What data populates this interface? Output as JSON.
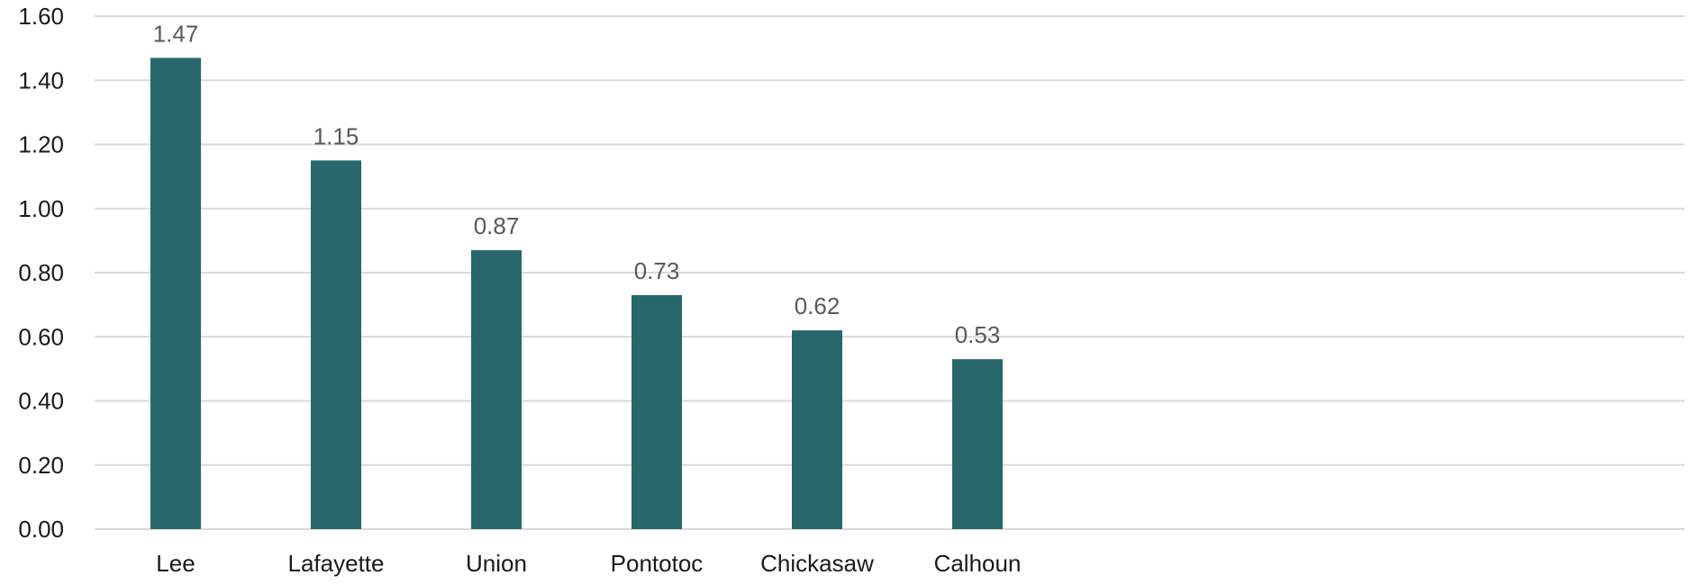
{
  "chart_data": {
    "type": "bar",
    "title": "",
    "xlabel": "",
    "ylabel": "",
    "categories": [
      "Lee",
      "Lafayette",
      "Union",
      "Pontotoc",
      "Chickasaw",
      "Calhoun"
    ],
    "values": [
      1.47,
      1.15,
      0.87,
      0.73,
      0.62,
      0.53
    ],
    "data_labels": [
      "1.47",
      "1.15",
      "0.87",
      "0.73",
      "0.62",
      "0.53"
    ],
    "ylim": [
      0,
      1.6
    ],
    "y_ticks": [
      "0.00",
      "0.20",
      "0.40",
      "0.60",
      "0.80",
      "1.00",
      "1.20",
      "1.40",
      "1.60"
    ],
    "grid": true,
    "legend": "none",
    "colors": {
      "bar": "#27666B",
      "grid": "#d9d9d9",
      "data_label": "#595959",
      "axis_text": "#1a1a1a"
    }
  }
}
